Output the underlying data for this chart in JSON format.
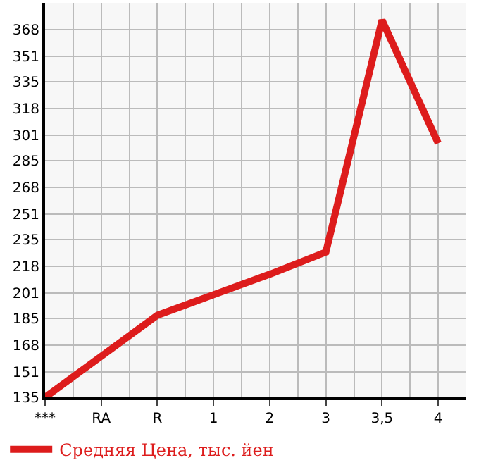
{
  "chart_data": {
    "type": "line",
    "categories": [
      "***",
      "RA",
      "R",
      "1",
      "2",
      "3",
      "3,5",
      "4"
    ],
    "series": [
      {
        "name": "Средняя Цена, тыс. йен",
        "color": "#dd1c1c",
        "values": [
          135,
          161,
          187,
          200,
          213,
          227,
          374,
          296
        ]
      }
    ],
    "ylim": [
      135,
      385
    ],
    "yticks": [
      135,
      151,
      168,
      185,
      201,
      218,
      235,
      251,
      268,
      285,
      301,
      318,
      335,
      351,
      368
    ],
    "grid": true,
    "legend": "bottom left",
    "marker": "none",
    "line_style": "solid"
  }
}
